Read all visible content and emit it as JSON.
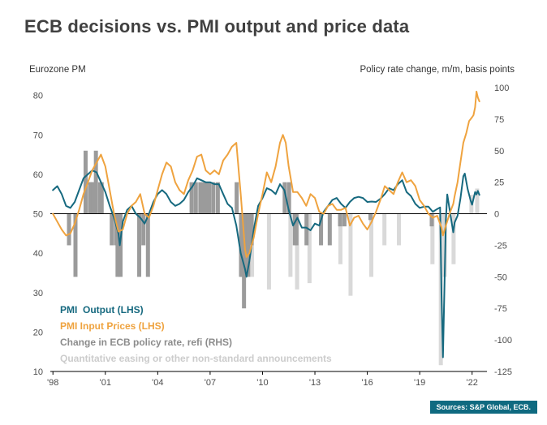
{
  "title": "ECB decisions vs. PMI output and price data",
  "left_axis_title": "Eurozone PM",
  "right_axis_title": "Policy rate change, m/m, basis points",
  "source": "Sources: S&P Global, ECB.",
  "colors": {
    "pmi_output": "#16697f",
    "pmi_input_prices": "#efa33f",
    "rate_bars": "#9b9b9b",
    "qe_bars": "#d9d9d9",
    "axis_text": "#4d4d4d",
    "zero_line": "#000000",
    "legend_rate": "#8c8c8c",
    "legend_qe": "#cccccc"
  },
  "legend": {
    "items": [
      {
        "label": "PMI  Output (LHS)",
        "color": "#16697f"
      },
      {
        "label": "PMI Input Prices (LHS)",
        "color": "#efa33f"
      },
      {
        "label": "Change in ECB policy rate, refi (RHS)",
        "color": "#8c8c8c"
      },
      {
        "label": "Quantitative easing or other non-standard announcements",
        "color": "#cccccc"
      }
    ]
  },
  "chart_data": {
    "type": "line",
    "title": "ECB decisions vs. PMI output and price data",
    "left_axis": {
      "label": "Eurozone PM",
      "ticks": [
        80,
        70,
        60,
        50,
        40,
        30,
        20,
        10
      ],
      "range": [
        10,
        82
      ]
    },
    "right_axis": {
      "label": "Policy rate change, m/m, basis points",
      "ticks": [
        100,
        75,
        50,
        25,
        0,
        -25,
        -50,
        -75,
        -100,
        -125
      ],
      "range": [
        -125,
        100
      ]
    },
    "x_axis": {
      "tick_labels": [
        "'98",
        "'01",
        "'04",
        "'07",
        "'10",
        "'13",
        "'16",
        "'19",
        "'22"
      ],
      "tick_values": [
        1998,
        2001,
        2004,
        2007,
        2010,
        2013,
        2016,
        2019,
        2022
      ],
      "range": [
        1997.85,
        2022.85
      ]
    },
    "series": [
      {
        "name": "PMI Output (LHS)",
        "axis": "left",
        "color": "#16697f",
        "points": [
          [
            1998.0,
            56
          ],
          [
            1998.25,
            57
          ],
          [
            1998.5,
            55
          ],
          [
            1998.75,
            52
          ],
          [
            1999.0,
            51.5
          ],
          [
            1999.25,
            53
          ],
          [
            1999.5,
            56
          ],
          [
            1999.75,
            59
          ],
          [
            2000.0,
            60
          ],
          [
            2000.25,
            61
          ],
          [
            2000.5,
            60.5
          ],
          [
            2000.75,
            58
          ],
          [
            2001.0,
            55.5
          ],
          [
            2001.25,
            52
          ],
          [
            2001.5,
            49
          ],
          [
            2001.75,
            45
          ],
          [
            2001.83,
            42
          ],
          [
            2002.0,
            48
          ],
          [
            2002.25,
            51
          ],
          [
            2002.5,
            52
          ],
          [
            2002.75,
            50
          ],
          [
            2003.0,
            49
          ],
          [
            2003.25,
            47.5
          ],
          [
            2003.5,
            50
          ],
          [
            2003.75,
            53
          ],
          [
            2004.0,
            55
          ],
          [
            2004.25,
            56
          ],
          [
            2004.5,
            55
          ],
          [
            2004.75,
            53
          ],
          [
            2005.0,
            52
          ],
          [
            2005.25,
            52.5
          ],
          [
            2005.5,
            53.5
          ],
          [
            2005.75,
            55.5
          ],
          [
            2006.0,
            57
          ],
          [
            2006.25,
            59
          ],
          [
            2006.5,
            58.5
          ],
          [
            2006.75,
            58
          ],
          [
            2007.0,
            58
          ],
          [
            2007.25,
            57.5
          ],
          [
            2007.5,
            57.5
          ],
          [
            2007.75,
            55
          ],
          [
            2008.0,
            52.5
          ],
          [
            2008.25,
            51.5
          ],
          [
            2008.5,
            47
          ],
          [
            2008.75,
            40
          ],
          [
            2009.0,
            36
          ],
          [
            2009.08,
            34
          ],
          [
            2009.25,
            38
          ],
          [
            2009.5,
            46
          ],
          [
            2009.75,
            52
          ],
          [
            2010.0,
            54
          ],
          [
            2010.25,
            56.5
          ],
          [
            2010.5,
            56
          ],
          [
            2010.75,
            55
          ],
          [
            2011.0,
            57.5
          ],
          [
            2011.25,
            56
          ],
          [
            2011.5,
            51
          ],
          [
            2011.75,
            47
          ],
          [
            2012.0,
            49
          ],
          [
            2012.25,
            46.5
          ],
          [
            2012.5,
            46.5
          ],
          [
            2012.75,
            45.8
          ],
          [
            2013.0,
            47.5
          ],
          [
            2013.25,
            47
          ],
          [
            2013.5,
            50.5
          ],
          [
            2013.75,
            52
          ],
          [
            2014.0,
            53.5
          ],
          [
            2014.25,
            54
          ],
          [
            2014.5,
            52.5
          ],
          [
            2014.75,
            51.5
          ],
          [
            2015.0,
            53
          ],
          [
            2015.25,
            54
          ],
          [
            2015.5,
            54.3
          ],
          [
            2015.75,
            54
          ],
          [
            2016.0,
            53
          ],
          [
            2016.25,
            53.1
          ],
          [
            2016.5,
            53
          ],
          [
            2016.75,
            53.8
          ],
          [
            2017.0,
            55
          ],
          [
            2017.25,
            56.5
          ],
          [
            2017.5,
            56
          ],
          [
            2017.75,
            57.5
          ],
          [
            2018.0,
            58.5
          ],
          [
            2018.25,
            55.5
          ],
          [
            2018.5,
            54.5
          ],
          [
            2018.75,
            52.5
          ],
          [
            2019.0,
            51.5
          ],
          [
            2019.25,
            51.8
          ],
          [
            2019.5,
            51.8
          ],
          [
            2019.75,
            50.5
          ],
          [
            2020.0,
            51.2
          ],
          [
            2020.17,
            51.6
          ],
          [
            2020.25,
            29.7
          ],
          [
            2020.33,
            13.6
          ],
          [
            2020.42,
            31.9
          ],
          [
            2020.5,
            48.5
          ],
          [
            2020.58,
            54.9
          ],
          [
            2020.75,
            50
          ],
          [
            2020.92,
            45.3
          ],
          [
            2021.0,
            47.8
          ],
          [
            2021.17,
            49.5
          ],
          [
            2021.33,
            53.8
          ],
          [
            2021.5,
            59.5
          ],
          [
            2021.58,
            60.2
          ],
          [
            2021.75,
            56.2
          ],
          [
            2021.92,
            53.3
          ],
          [
            2022.0,
            52.3
          ],
          [
            2022.17,
            55.5
          ],
          [
            2022.25,
            54.9
          ],
          [
            2022.33,
            55.8
          ],
          [
            2022.42,
            54.8
          ]
        ]
      },
      {
        "name": "PMI Input Prices (LHS)",
        "axis": "left",
        "color": "#efa33f",
        "points": [
          [
            1998.0,
            50
          ],
          [
            1998.25,
            48
          ],
          [
            1998.5,
            46
          ],
          [
            1998.75,
            44.5
          ],
          [
            1999.0,
            45
          ],
          [
            1999.25,
            47.5
          ],
          [
            1999.5,
            51
          ],
          [
            1999.75,
            55
          ],
          [
            2000.0,
            58
          ],
          [
            2000.25,
            61
          ],
          [
            2000.5,
            63
          ],
          [
            2000.75,
            65
          ],
          [
            2001.0,
            62
          ],
          [
            2001.25,
            56
          ],
          [
            2001.5,
            50
          ],
          [
            2001.75,
            45.5
          ],
          [
            2002.0,
            46
          ],
          [
            2002.25,
            50
          ],
          [
            2002.5,
            52
          ],
          [
            2002.75,
            53
          ],
          [
            2003.0,
            55
          ],
          [
            2003.25,
            50
          ],
          [
            2003.5,
            49
          ],
          [
            2003.75,
            52
          ],
          [
            2004.0,
            56
          ],
          [
            2004.25,
            60
          ],
          [
            2004.5,
            63
          ],
          [
            2004.75,
            62
          ],
          [
            2005.0,
            58
          ],
          [
            2005.25,
            56
          ],
          [
            2005.5,
            55
          ],
          [
            2005.75,
            58.5
          ],
          [
            2006.0,
            61
          ],
          [
            2006.25,
            64.5
          ],
          [
            2006.5,
            65
          ],
          [
            2006.75,
            61
          ],
          [
            2007.0,
            60
          ],
          [
            2007.25,
            61
          ],
          [
            2007.5,
            60
          ],
          [
            2007.75,
            63.5
          ],
          [
            2008.0,
            65
          ],
          [
            2008.25,
            67
          ],
          [
            2008.5,
            68
          ],
          [
            2008.75,
            55
          ],
          [
            2009.0,
            41
          ],
          [
            2009.08,
            39
          ],
          [
            2009.25,
            40
          ],
          [
            2009.5,
            44
          ],
          [
            2009.75,
            50
          ],
          [
            2010.0,
            55
          ],
          [
            2010.25,
            60.5
          ],
          [
            2010.5,
            58
          ],
          [
            2010.75,
            62
          ],
          [
            2011.0,
            68
          ],
          [
            2011.17,
            70
          ],
          [
            2011.33,
            68
          ],
          [
            2011.5,
            62
          ],
          [
            2011.75,
            55.5
          ],
          [
            2012.0,
            55.5
          ],
          [
            2012.25,
            54
          ],
          [
            2012.5,
            52
          ],
          [
            2012.75,
            55
          ],
          [
            2013.0,
            54
          ],
          [
            2013.25,
            50.5
          ],
          [
            2013.5,
            50
          ],
          [
            2013.75,
            52
          ],
          [
            2014.0,
            52.5
          ],
          [
            2014.25,
            51
          ],
          [
            2014.5,
            51
          ],
          [
            2014.75,
            51.5
          ],
          [
            2015.0,
            47
          ],
          [
            2015.25,
            49
          ],
          [
            2015.5,
            49.5
          ],
          [
            2015.75,
            47.5
          ],
          [
            2016.0,
            46
          ],
          [
            2016.25,
            48
          ],
          [
            2016.5,
            50.5
          ],
          [
            2016.75,
            53.5
          ],
          [
            2017.0,
            57
          ],
          [
            2017.25,
            56
          ],
          [
            2017.5,
            55
          ],
          [
            2017.75,
            58
          ],
          [
            2018.0,
            60.5
          ],
          [
            2018.25,
            58
          ],
          [
            2018.5,
            58.5
          ],
          [
            2018.75,
            57
          ],
          [
            2019.0,
            53.5
          ],
          [
            2019.25,
            52
          ],
          [
            2019.5,
            50
          ],
          [
            2019.75,
            49
          ],
          [
            2020.0,
            49.5
          ],
          [
            2020.25,
            46.5
          ],
          [
            2020.33,
            44.5
          ],
          [
            2020.5,
            47
          ],
          [
            2020.75,
            50.5
          ],
          [
            2020.92,
            52.5
          ],
          [
            2021.0,
            54.5
          ],
          [
            2021.17,
            58
          ],
          [
            2021.33,
            63
          ],
          [
            2021.5,
            68
          ],
          [
            2021.67,
            70.5
          ],
          [
            2021.83,
            73.5
          ],
          [
            2022.0,
            74.5
          ],
          [
            2022.08,
            75
          ],
          [
            2022.17,
            77
          ],
          [
            2022.25,
            81
          ],
          [
            2022.33,
            79.5
          ],
          [
            2022.42,
            78.5
          ]
        ]
      }
    ],
    "bars": [
      {
        "name": "Change in ECB policy rate, refi (RHS)",
        "axis": "right",
        "color": "#9b9b9b",
        "points": [
          [
            1998.92,
            -25
          ],
          [
            1999.29,
            -50
          ],
          [
            1999.87,
            50
          ],
          [
            2000.12,
            25
          ],
          [
            2000.21,
            25
          ],
          [
            2000.3,
            25
          ],
          [
            2000.46,
            50
          ],
          [
            2000.7,
            25
          ],
          [
            2000.79,
            25
          ],
          [
            2001.37,
            -25
          ],
          [
            2001.62,
            -25
          ],
          [
            2001.7,
            -50
          ],
          [
            2001.87,
            -50
          ],
          [
            2002.94,
            -50
          ],
          [
            2003.18,
            -25
          ],
          [
            2003.44,
            -50
          ],
          [
            2005.94,
            25
          ],
          [
            2006.18,
            25
          ],
          [
            2006.44,
            25
          ],
          [
            2006.6,
            25
          ],
          [
            2006.77,
            25
          ],
          [
            2006.94,
            25
          ],
          [
            2007.18,
            25
          ],
          [
            2007.44,
            25
          ],
          [
            2008.52,
            25
          ],
          [
            2008.77,
            -50
          ],
          [
            2008.85,
            -50
          ],
          [
            2008.94,
            -75
          ],
          [
            2009.04,
            -50
          ],
          [
            2009.18,
            -50
          ],
          [
            2009.27,
            -25
          ],
          [
            2009.37,
            -25
          ],
          [
            2011.27,
            25
          ],
          [
            2011.52,
            25
          ],
          [
            2011.85,
            -25
          ],
          [
            2011.94,
            -25
          ],
          [
            2012.52,
            -25
          ],
          [
            2013.35,
            -25
          ],
          [
            2013.85,
            -25
          ],
          [
            2014.44,
            -10
          ],
          [
            2014.69,
            -10
          ],
          [
            2016.18,
            -5
          ],
          [
            2019.69,
            -10
          ]
        ]
      },
      {
        "name": "Quantitative easing or other non-standard announcements",
        "axis": "right",
        "color": "#d9d9d9",
        "points": [
          [
            2009.4,
            -50
          ],
          [
            2010.37,
            -60
          ],
          [
            2011.6,
            -50
          ],
          [
            2011.98,
            -60
          ],
          [
            2012.69,
            -55
          ],
          [
            2014.46,
            -40
          ],
          [
            2015.04,
            -65
          ],
          [
            2016.23,
            -50
          ],
          [
            2016.98,
            -25
          ],
          [
            2017.81,
            -25
          ],
          [
            2019.73,
            -40
          ],
          [
            2020.21,
            -120
          ],
          [
            2020.44,
            -50
          ],
          [
            2020.94,
            -40
          ],
          [
            2021.96,
            15
          ],
          [
            2022.29,
            20
          ]
        ]
      }
    ],
    "zero_line_right_axis": 0,
    "grid": false,
    "legend_position": "inside-bottom-left"
  }
}
